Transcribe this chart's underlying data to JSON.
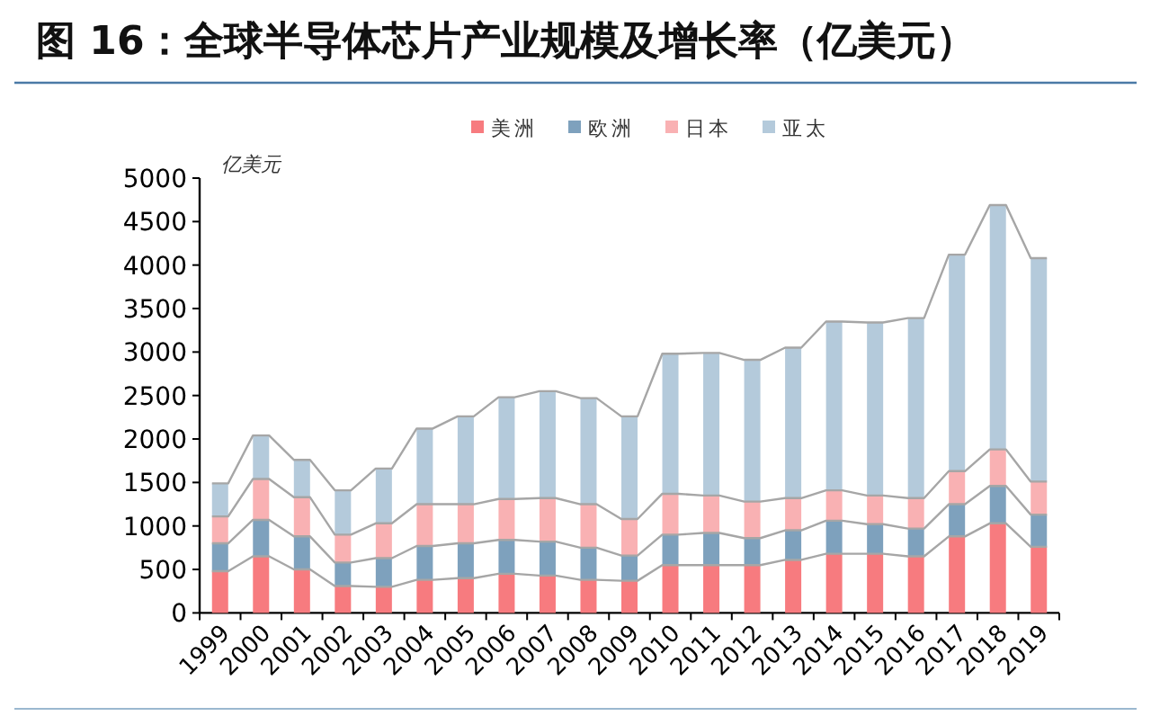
{
  "chart_data": {
    "type": "bar",
    "stacked": true,
    "title": "图 16：全球半导体芯片产业规模及增长率（亿美元）",
    "ylabel": "亿美元",
    "categories": [
      "1999",
      "2000",
      "2001",
      "2002",
      "2003",
      "2004",
      "2005",
      "2006",
      "2007",
      "2008",
      "2009",
      "2010",
      "2011",
      "2012",
      "2013",
      "2014",
      "2015",
      "2016",
      "2017",
      "2018",
      "2019"
    ],
    "series": [
      {
        "name": "美洲",
        "color": "#f77b7f",
        "values": [
          480,
          650,
          500,
          310,
          300,
          380,
          400,
          450,
          430,
          380,
          370,
          550,
          550,
          550,
          610,
          680,
          680,
          650,
          880,
          1030,
          760
        ]
      },
      {
        "name": "欧洲",
        "color": "#7ea1bd",
        "values": [
          320,
          420,
          380,
          270,
          330,
          390,
          400,
          390,
          390,
          370,
          290,
          350,
          370,
          310,
          340,
          380,
          340,
          320,
          370,
          430,
          370
        ]
      },
      {
        "name": "日本",
        "color": "#f9b1b3",
        "values": [
          310,
          470,
          450,
          320,
          400,
          480,
          450,
          470,
          500,
          500,
          420,
          470,
          430,
          420,
          370,
          350,
          330,
          350,
          380,
          420,
          380
        ]
      },
      {
        "name": "亚太",
        "color": "#b4cadb",
        "values": [
          380,
          500,
          430,
          510,
          630,
          870,
          1010,
          1170,
          1230,
          1220,
          1180,
          1610,
          1640,
          1630,
          1730,
          1940,
          1990,
          2070,
          2490,
          2810,
          2570
        ]
      }
    ],
    "ylim": [
      0,
      5000
    ],
    "yticks": [
      0,
      500,
      1000,
      1500,
      2000,
      2500,
      3000,
      3500,
      4000,
      4500,
      5000
    ],
    "grid": false,
    "legend": "top"
  }
}
